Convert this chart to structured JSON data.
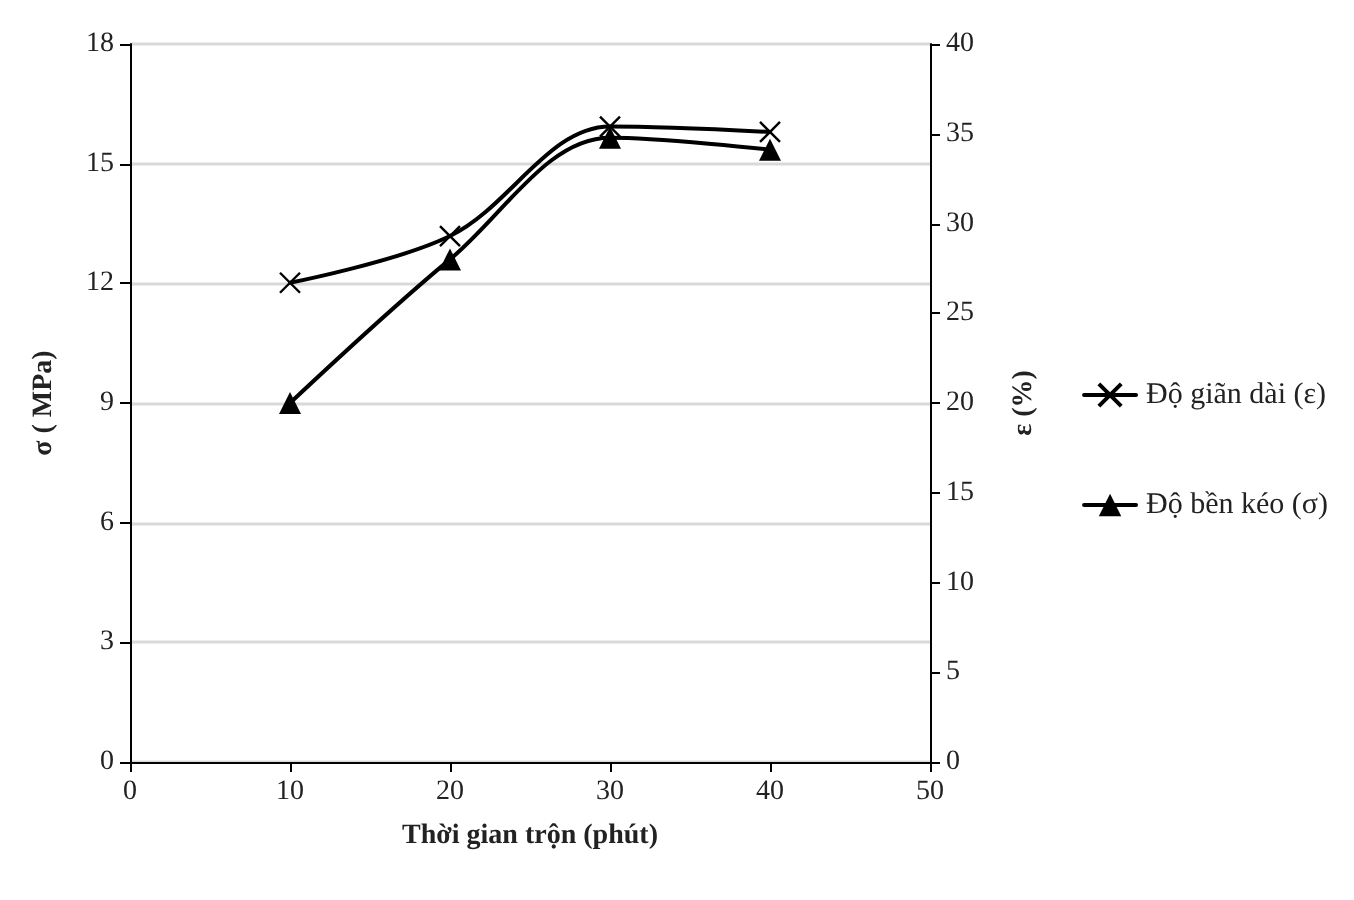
{
  "chart_data": {
    "type": "line",
    "xlabel": "Thời gian trộn (phút)",
    "ylabel": "σ ( MPa)",
    "y2label": "ε (%)",
    "x": [
      10,
      20,
      30,
      40
    ],
    "series": [
      {
        "name": "Độ giãn dài (ε)",
        "color": "#000000",
        "values": [
          26.7,
          29.3,
          35.4,
          35.1
        ],
        "axis": "y2",
        "marker": "cross"
      },
      {
        "name": "Độ bền kéo (σ)",
        "color": "#000000",
        "values": [
          9.0,
          12.6,
          15.65,
          15.35
        ],
        "marker": "triangle"
      }
    ],
    "xlim": [
      0,
      50
    ],
    "xticks": [
      0,
      10,
      20,
      30,
      40,
      50
    ],
    "ylim": [
      0,
      18
    ],
    "yticks": [
      0,
      3,
      6,
      9,
      12,
      15,
      18
    ],
    "y2lim": [
      0,
      40
    ],
    "y2ticks": [
      0,
      5,
      10,
      15,
      20,
      25,
      30,
      35,
      40
    ],
    "grid": "y",
    "legend": "right",
    "line_style": "solid"
  }
}
